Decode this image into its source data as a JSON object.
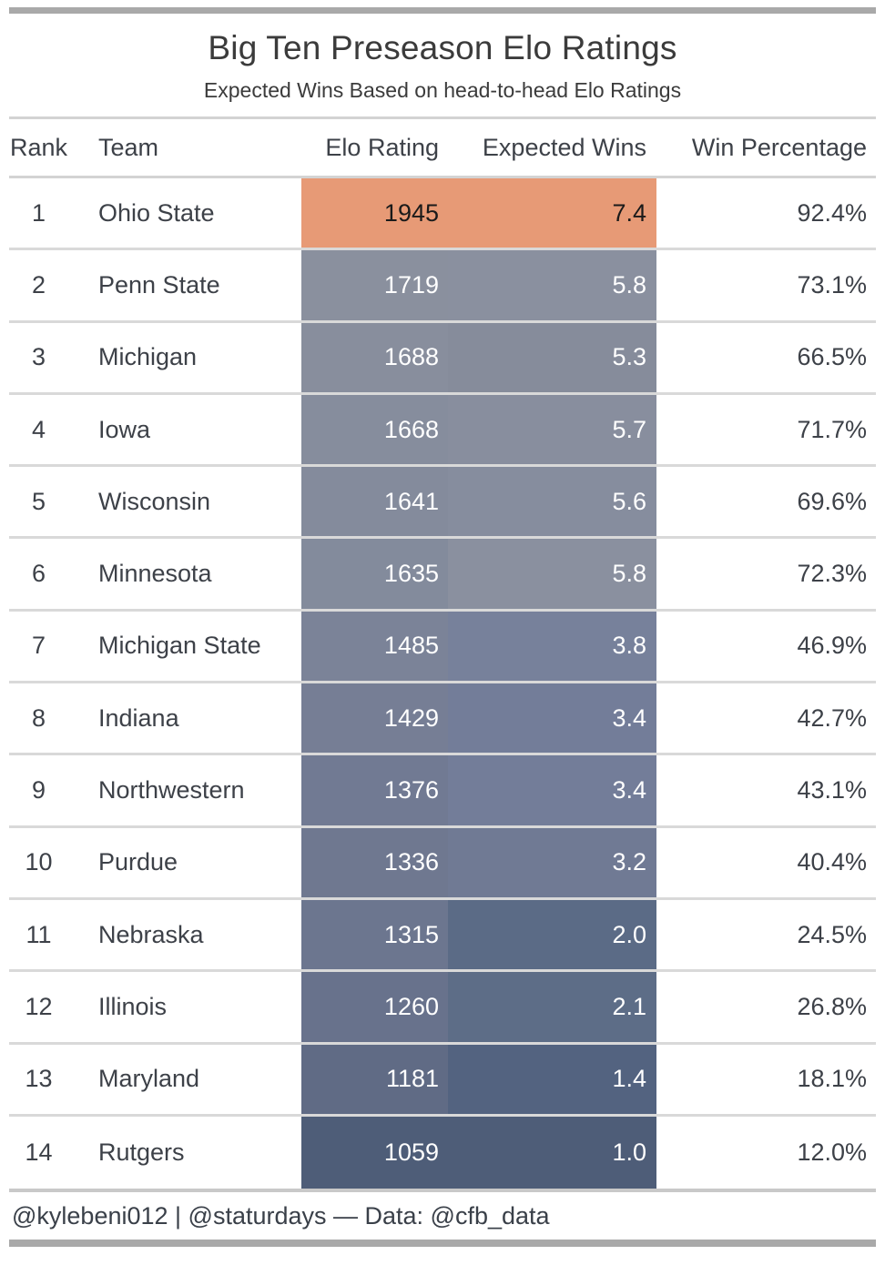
{
  "page": {
    "title": "Big Ten Preseason Elo Ratings",
    "subtitle": "Expected Wins Based on head-to-head Elo Ratings",
    "footer_credit": "@kylebeni012 | @staturdays — Data: @cfb_data"
  },
  "colors": {
    "top_rank_accent": "#E79A76",
    "low_rank_dark": "#4E5D78",
    "mid_gray": "#8A909E",
    "frame_bar_gray": "#A9A9A9",
    "divider_gray": "#D9D9D9",
    "text_dark": "#3D4148",
    "text_light": "#FFFFFF"
  },
  "table": {
    "columns": [
      "Rank",
      "Team",
      "Elo Rating",
      "Expected Wins",
      "Win Percentage"
    ],
    "rows": [
      {
        "rank": "1",
        "team": "Ohio State",
        "elo": "1945",
        "expected_wins": "7.4",
        "win_pct": "92.4%",
        "elo_color": "#E79A76",
        "ew_color": "#E79A76",
        "text_color": "#1A1A1A"
      },
      {
        "rank": "2",
        "team": "Penn State",
        "elo": "1719",
        "expected_wins": "5.8",
        "win_pct": "73.1%",
        "elo_color": "#8A909E",
        "ew_color": "#8A909F",
        "text_color": "#FFFFFF"
      },
      {
        "rank": "3",
        "team": "Michigan",
        "elo": "1688",
        "expected_wins": "5.3",
        "win_pct": "66.5%",
        "elo_color": "#888E9D",
        "ew_color": "#868C9B",
        "text_color": "#FFFFFF"
      },
      {
        "rank": "4",
        "team": "Iowa",
        "elo": "1668",
        "expected_wins": "5.7",
        "win_pct": "71.7%",
        "elo_color": "#868D9D",
        "ew_color": "#888E9E",
        "text_color": "#FFFFFF"
      },
      {
        "rank": "5",
        "team": "Wisconsin",
        "elo": "1641",
        "expected_wins": "5.6",
        "win_pct": "69.6%",
        "elo_color": "#848B9C",
        "ew_color": "#868D9E",
        "text_color": "#FFFFFF"
      },
      {
        "rank": "6",
        "team": "Minnesota",
        "elo": "1635",
        "expected_wins": "5.8",
        "win_pct": "72.3%",
        "elo_color": "#838B9C",
        "ew_color": "#8A909F",
        "text_color": "#FFFFFF"
      },
      {
        "rank": "7",
        "team": "Michigan State",
        "elo": "1485",
        "expected_wins": "3.8",
        "win_pct": "46.9%",
        "elo_color": "#7B8398",
        "ew_color": "#77819B",
        "text_color": "#FFFFFF"
      },
      {
        "rank": "8",
        "team": "Indiana",
        "elo": "1429",
        "expected_wins": "3.4",
        "win_pct": "42.7%",
        "elo_color": "#767E95",
        "ew_color": "#737D99",
        "text_color": "#FFFFFF"
      },
      {
        "rank": "9",
        "team": "Northwestern",
        "elo": "1376",
        "expected_wins": "3.4",
        "win_pct": "43.1%",
        "elo_color": "#717A93",
        "ew_color": "#737D99",
        "text_color": "#FFFFFF"
      },
      {
        "rank": "10",
        "team": "Purdue",
        "elo": "1336",
        "expected_wins": "3.2",
        "win_pct": "40.4%",
        "elo_color": "#6F7890",
        "ew_color": "#707A94",
        "text_color": "#FFFFFF"
      },
      {
        "rank": "11",
        "team": "Nebraska",
        "elo": "1315",
        "expected_wins": "2.0",
        "win_pct": "24.5%",
        "elo_color": "#6C768F",
        "ew_color": "#5B6B86",
        "text_color": "#FFFFFF"
      },
      {
        "rank": "12",
        "team": "Illinois",
        "elo": "1260",
        "expected_wins": "2.1",
        "win_pct": "26.8%",
        "elo_color": "#68728C",
        "ew_color": "#5D6D87",
        "text_color": "#FFFFFF"
      },
      {
        "rank": "13",
        "team": "Maryland",
        "elo": "1181",
        "expected_wins": "1.4",
        "win_pct": "18.1%",
        "elo_color": "#606B85",
        "ew_color": "#536380",
        "text_color": "#FFFFFF"
      },
      {
        "rank": "14",
        "team": "Rutgers",
        "elo": "1059",
        "expected_wins": "1.0",
        "win_pct": "12.0%",
        "elo_color": "#4E5D78",
        "ew_color": "#4E5D78",
        "text_color": "#FFFFFF"
      }
    ]
  },
  "chart_data": {
    "type": "table",
    "title": "Big Ten Preseason Elo Ratings",
    "subtitle": "Expected Wins Based on head-to-head Elo Ratings",
    "columns": [
      "Rank",
      "Team",
      "Elo Rating",
      "Expected Wins",
      "Win Percentage"
    ],
    "rows": [
      [
        1,
        "Ohio State",
        1945,
        7.4,
        92.4
      ],
      [
        2,
        "Penn State",
        1719,
        5.8,
        73.1
      ],
      [
        3,
        "Michigan",
        1688,
        5.3,
        66.5
      ],
      [
        4,
        "Iowa",
        1668,
        5.7,
        71.7
      ],
      [
        5,
        "Wisconsin",
        1641,
        5.6,
        69.6
      ],
      [
        6,
        "Minnesota",
        1635,
        5.8,
        72.3
      ],
      [
        7,
        "Michigan State",
        1485,
        3.8,
        46.9
      ],
      [
        8,
        "Indiana",
        1429,
        3.4,
        42.7
      ],
      [
        9,
        "Northwestern",
        1376,
        3.4,
        43.1
      ],
      [
        10,
        "Purdue",
        1336,
        3.2,
        40.4
      ],
      [
        11,
        "Nebraska",
        1315,
        2.0,
        24.5
      ],
      [
        12,
        "Illinois",
        1260,
        2.1,
        26.8
      ],
      [
        13,
        "Maryland",
        1181,
        1.4,
        18.1
      ],
      [
        14,
        "Rutgers",
        1059,
        1.0,
        12.0
      ]
    ],
    "notes": "Elo Rating and Expected Wins cells are heat-shaded per column: dark slate blue for lowest values through gray to orange for the highest (Ohio State).",
    "legend_position": "none",
    "grid": "horizontal row separators only"
  }
}
